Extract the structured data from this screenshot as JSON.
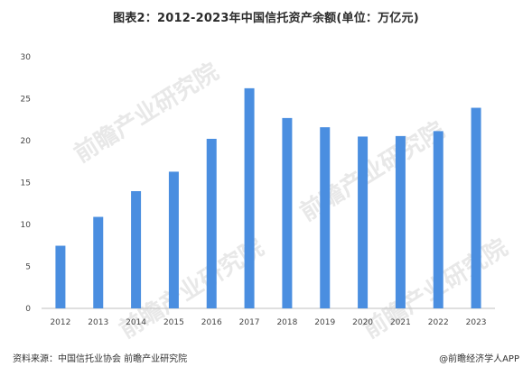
{
  "title": "图表2：2012-2023年中国信托资产余额(单位：万亿元)",
  "footer": {
    "source": "资料来源：中国信托业协会 前瞻产业研究院",
    "brand": "@前瞻经济学人APP"
  },
  "watermark": "前瞻产业研究院",
  "colors": {
    "bar": "#4a8ee0",
    "grid": "#e6e6e6",
    "axis": "#bfbfbf"
  },
  "chart_data": {
    "type": "bar",
    "categories": [
      "2012",
      "2013",
      "2014",
      "2015",
      "2016",
      "2017",
      "2018",
      "2019",
      "2020",
      "2021",
      "2022",
      "2023"
    ],
    "values": [
      7.47,
      10.91,
      13.98,
      16.3,
      20.22,
      26.25,
      22.7,
      21.6,
      20.49,
      20.55,
      21.14,
      23.92
    ],
    "ylim": [
      0,
      30
    ],
    "yticks": [
      0,
      5,
      10,
      15,
      20,
      25,
      30
    ],
    "grid": false
  }
}
